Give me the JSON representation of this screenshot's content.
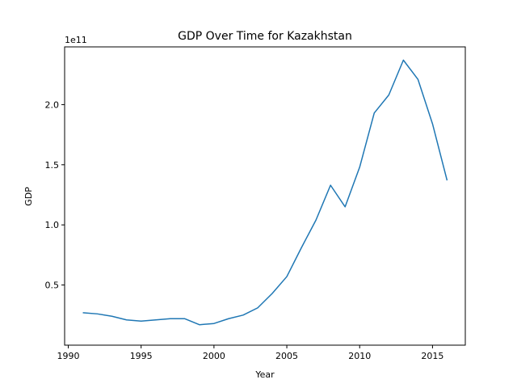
{
  "chart_data": {
    "type": "line",
    "title": "GDP Over Time for Kazakhstan",
    "xlabel": "Year",
    "ylabel": "GDP",
    "y_offset_label": "1e11",
    "xlim": [
      1989.75,
      2017.25
    ],
    "ylim": [
      0.0,
      2.48
    ],
    "y_scale_factor": 100000000000.0,
    "x_ticks": [
      1990,
      1995,
      2000,
      2005,
      2010,
      2015
    ],
    "x_tick_labels": [
      "1990",
      "1995",
      "2000",
      "2005",
      "2010",
      "2015"
    ],
    "y_ticks": [
      0.5,
      1.0,
      1.5,
      2.0
    ],
    "y_tick_labels": [
      "0.5",
      "1.0",
      "1.5",
      "2.0"
    ],
    "grid": false,
    "series": [
      {
        "color": "#1f77b4",
        "x": [
          1991,
          1992,
          1993,
          1994,
          1995,
          1996,
          1997,
          1998,
          1999,
          2000,
          2001,
          2002,
          2003,
          2004,
          2005,
          2006,
          2007,
          2008,
          2009,
          2010,
          2011,
          2012,
          2013,
          2014,
          2015,
          2016
        ],
        "y": [
          0.27,
          0.26,
          0.24,
          0.21,
          0.2,
          0.21,
          0.22,
          0.22,
          0.17,
          0.18,
          0.22,
          0.25,
          0.31,
          0.43,
          0.57,
          0.81,
          1.04,
          1.33,
          1.15,
          1.48,
          1.93,
          2.08,
          2.37,
          2.21,
          1.84,
          1.37
        ]
      }
    ]
  }
}
